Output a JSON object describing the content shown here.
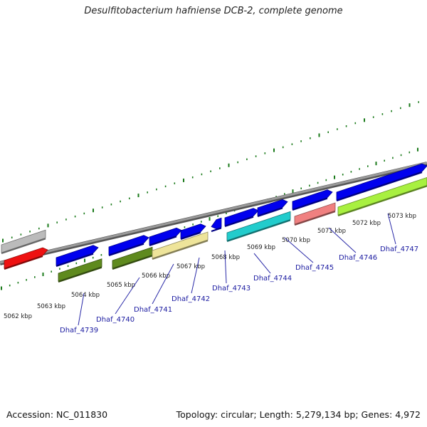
{
  "title": "Desulfitobacterium hafniense DCB-2, complete genome",
  "accession": "Accession: NC_011830",
  "topology": "Topology: circular; Length: 5,279,134 bp; Genes: 4,972",
  "scale_labels": [
    "5062 kbp",
    "5063 kbp",
    "5064 kbp",
    "5065 kbp",
    "5066 kbp",
    "5067 kbp",
    "5068 kbp",
    "5069 kbp",
    "5070 kbp",
    "5071 kbp",
    "5072 kbp",
    "5073 kbp"
  ],
  "gene_labels": [
    "Dhaf_4739",
    "Dhaf_4740",
    "Dhaf_4741",
    "Dhaf_4742",
    "Dhaf_4743",
    "Dhaf_4744",
    "Dhaf_4745",
    "Dhaf_4746",
    "Dhaf_4747"
  ],
  "colors": {
    "forward_gene": "#0000ee",
    "backbone": "#808080",
    "tick": "#1a7a1a",
    "label": "#1a1aa0",
    "red": "#ee1111",
    "gray": "#bbbbbb",
    "olive": "#5f8a1e",
    "khaki": "#eee49a",
    "cyan": "#22cccc",
    "pink": "#f08080",
    "lime": "#a8f040"
  }
}
